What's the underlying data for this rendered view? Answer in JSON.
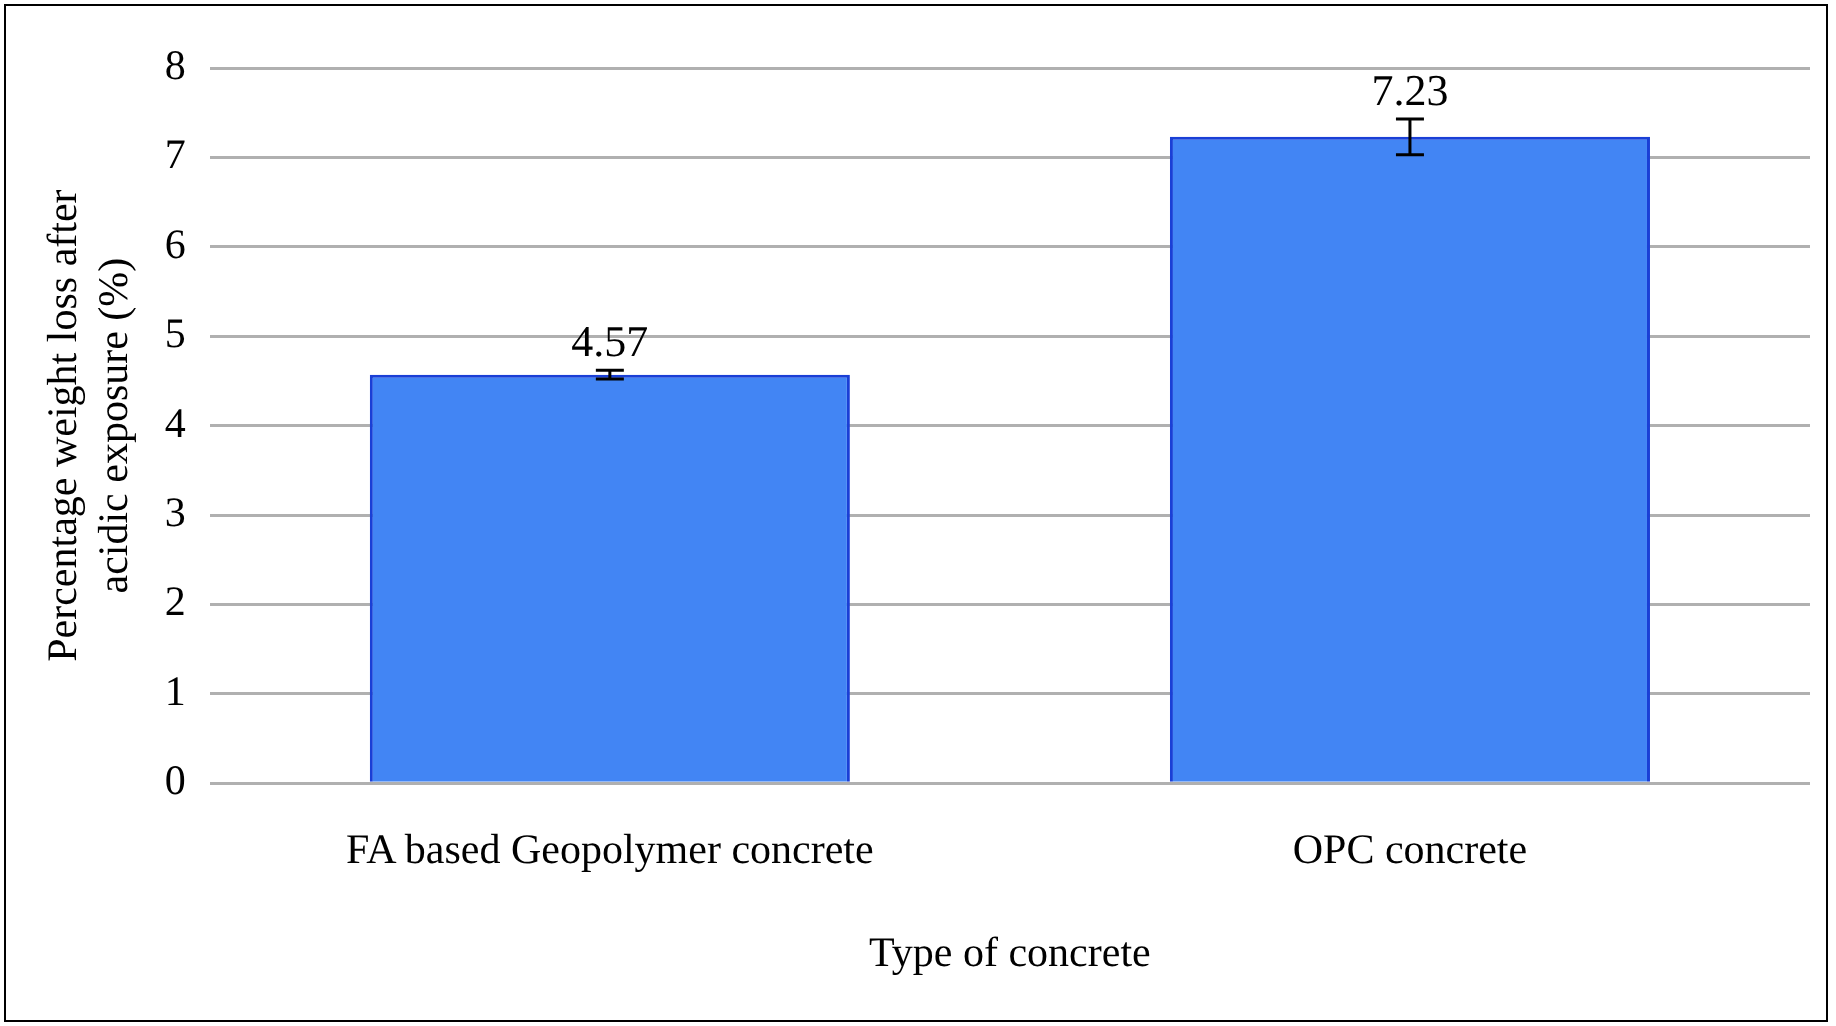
{
  "chart_data": {
    "type": "bar",
    "xlabel": "Type of concrete",
    "ylabel": "Percentage weight loss after acidic exposure (%)",
    "categories": [
      "FA based Geopolymer concrete",
      "OPC concrete"
    ],
    "values": [
      4.57,
      7.23
    ],
    "errors": [
      0.05,
      0.2
    ],
    "color": "#4285f4",
    "ylim": [
      0,
      8
    ],
    "yticks": [
      0,
      1,
      2,
      3,
      4,
      5,
      6,
      7,
      8
    ],
    "grid": "y",
    "data_labels": true
  }
}
